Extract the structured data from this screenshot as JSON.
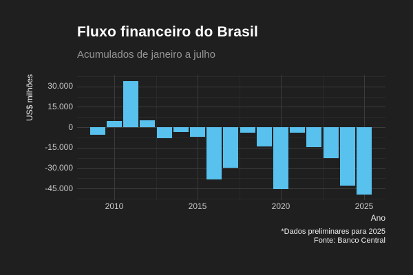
{
  "header": {
    "title": "Fluxo financeiro do Brasil",
    "subtitle": "Acumulados de janeiro a julho"
  },
  "footer": {
    "note": "*Dados preliminares para 2025",
    "source": "Fonte: Banco Central"
  },
  "chart_data": {
    "type": "bar",
    "title": "Fluxo financeiro do Brasil",
    "subtitle": "Acumulados de janeiro a julho",
    "xlabel": "Ano",
    "ylabel": "US$ milhões",
    "x": [
      2009,
      2010,
      2011,
      2012,
      2013,
      2014,
      2015,
      2016,
      2017,
      2018,
      2019,
      2020,
      2021,
      2022,
      2023,
      2024,
      2025
    ],
    "values": [
      -5500,
      4500,
      34000,
      5000,
      -8000,
      -3500,
      -7000,
      -38500,
      -30000,
      -4000,
      -14000,
      -45500,
      -4000,
      -14500,
      -22500,
      -43000,
      -49500
    ],
    "ylim": [
      -53500,
      38400
    ],
    "yticks": [
      30000,
      15000,
      0,
      -15000,
      -30000,
      -45000
    ],
    "ytick_labels": [
      "30.000",
      "15.000",
      "0",
      "-15.000",
      "-30.000",
      "-45.000"
    ],
    "y_minor": [
      37500,
      22500,
      7500,
      -7500,
      -22500,
      -37500,
      -52500
    ],
    "xticks": [
      2010,
      2015,
      2020,
      2025
    ],
    "xtick_labels": [
      "2010",
      "2015",
      "2020",
      "2025"
    ],
    "x_minor": [
      2012.5,
      2017.5,
      2022.5
    ],
    "grid": "major+minor",
    "legend": "none",
    "colors": {
      "bar": "#58C1ED",
      "background": "#1F1F1F",
      "grid_major": "#3C3C3C",
      "grid_minor": "#2A2A2A",
      "title": "#FFFFFF",
      "subtitle": "#969696",
      "tick_text": "#C9C9C9",
      "axis_title_text": "#EDEDED",
      "caption_text": "#F0F0F0"
    }
  }
}
